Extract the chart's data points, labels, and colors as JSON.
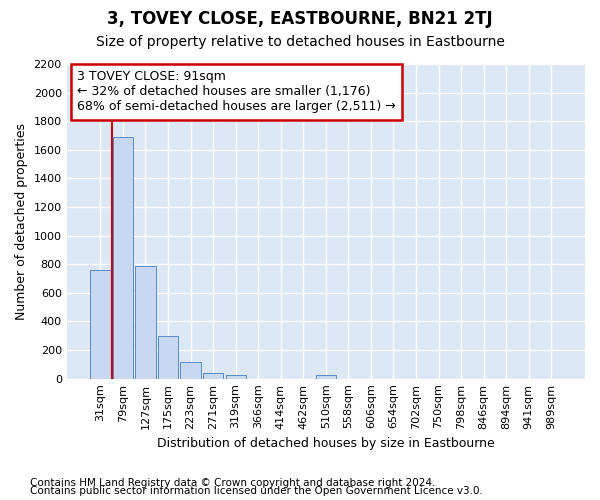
{
  "title": "3, TOVEY CLOSE, EASTBOURNE, BN21 2TJ",
  "subtitle": "Size of property relative to detached houses in Eastbourne",
  "xlabel": "Distribution of detached houses by size in Eastbourne",
  "ylabel": "Number of detached properties",
  "footnote1": "Contains HM Land Registry data © Crown copyright and database right 2024.",
  "footnote2": "Contains public sector information licensed under the Open Government Licence v3.0.",
  "categories": [
    "31sqm",
    "79sqm",
    "127sqm",
    "175sqm",
    "223sqm",
    "271sqm",
    "319sqm",
    "366sqm",
    "414sqm",
    "462sqm",
    "510sqm",
    "558sqm",
    "606sqm",
    "654sqm",
    "702sqm",
    "750sqm",
    "798sqm",
    "846sqm",
    "894sqm",
    "941sqm",
    "989sqm"
  ],
  "values": [
    760,
    1690,
    790,
    295,
    115,
    38,
    28,
    0,
    0,
    0,
    25,
    0,
    0,
    0,
    0,
    0,
    0,
    0,
    0,
    0,
    0
  ],
  "bar_color": "#c8d8f0",
  "bar_edge_color": "#5b8cc8",
  "bg_color": "#dde8f5",
  "fig_color": "#ffffff",
  "annotation_text": "3 TOVEY CLOSE: 91sqm\n← 32% of detached houses are smaller (1,176)\n68% of semi-detached houses are larger (2,511) →",
  "annotation_box_facecolor": "#ffffff",
  "annotation_box_edgecolor": "#cc0000",
  "vline_x": 0.5,
  "vline_color": "#cc0000",
  "ylim": [
    0,
    2200
  ],
  "yticks": [
    0,
    200,
    400,
    600,
    800,
    1000,
    1200,
    1400,
    1600,
    1800,
    2000,
    2200
  ],
  "title_fontsize": 12,
  "subtitle_fontsize": 10,
  "axis_label_fontsize": 9,
  "tick_fontsize": 8,
  "annotation_fontsize": 9,
  "footnote_fontsize": 7.5
}
